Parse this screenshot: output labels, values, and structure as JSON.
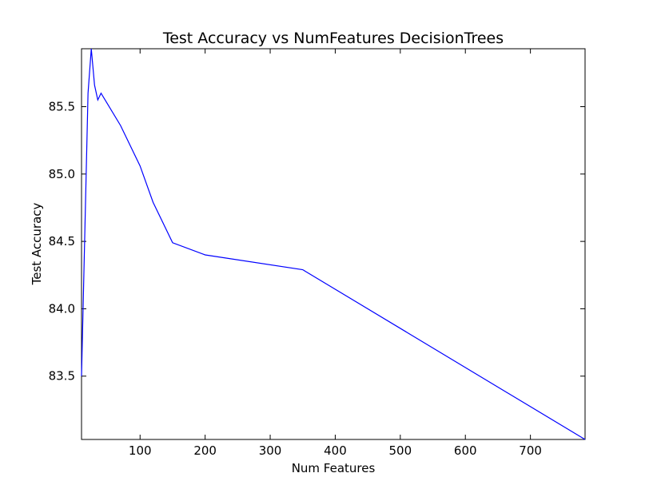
{
  "chart_data": {
    "type": "line",
    "title": "Test Accuracy vs NumFeatures DecisionTrees",
    "xlabel": "Num Features",
    "ylabel": "Test Accuracy",
    "xlim": [
      10,
      784
    ],
    "ylim": [
      83.03,
      85.93
    ],
    "xticks": [
      100,
      200,
      300,
      400,
      500,
      600,
      700
    ],
    "xtick_labels": [
      "100",
      "200",
      "300",
      "400",
      "500",
      "600",
      "700"
    ],
    "yticks": [
      83.5,
      84.0,
      84.5,
      85.0,
      85.5
    ],
    "ytick_labels": [
      "83.5",
      "84.0",
      "84.5",
      "85.0",
      "85.5"
    ],
    "grid": false,
    "legend": "none",
    "line_color": "#0000ff",
    "series": [
      {
        "x": [
          10,
          20,
          25,
          30,
          35,
          40,
          70,
          100,
          120,
          150,
          200,
          350,
          784
        ],
        "y": [
          83.5,
          85.6,
          85.93,
          85.66,
          85.55,
          85.6,
          85.36,
          85.06,
          84.79,
          84.49,
          84.4,
          84.29,
          83.03
        ]
      }
    ]
  }
}
